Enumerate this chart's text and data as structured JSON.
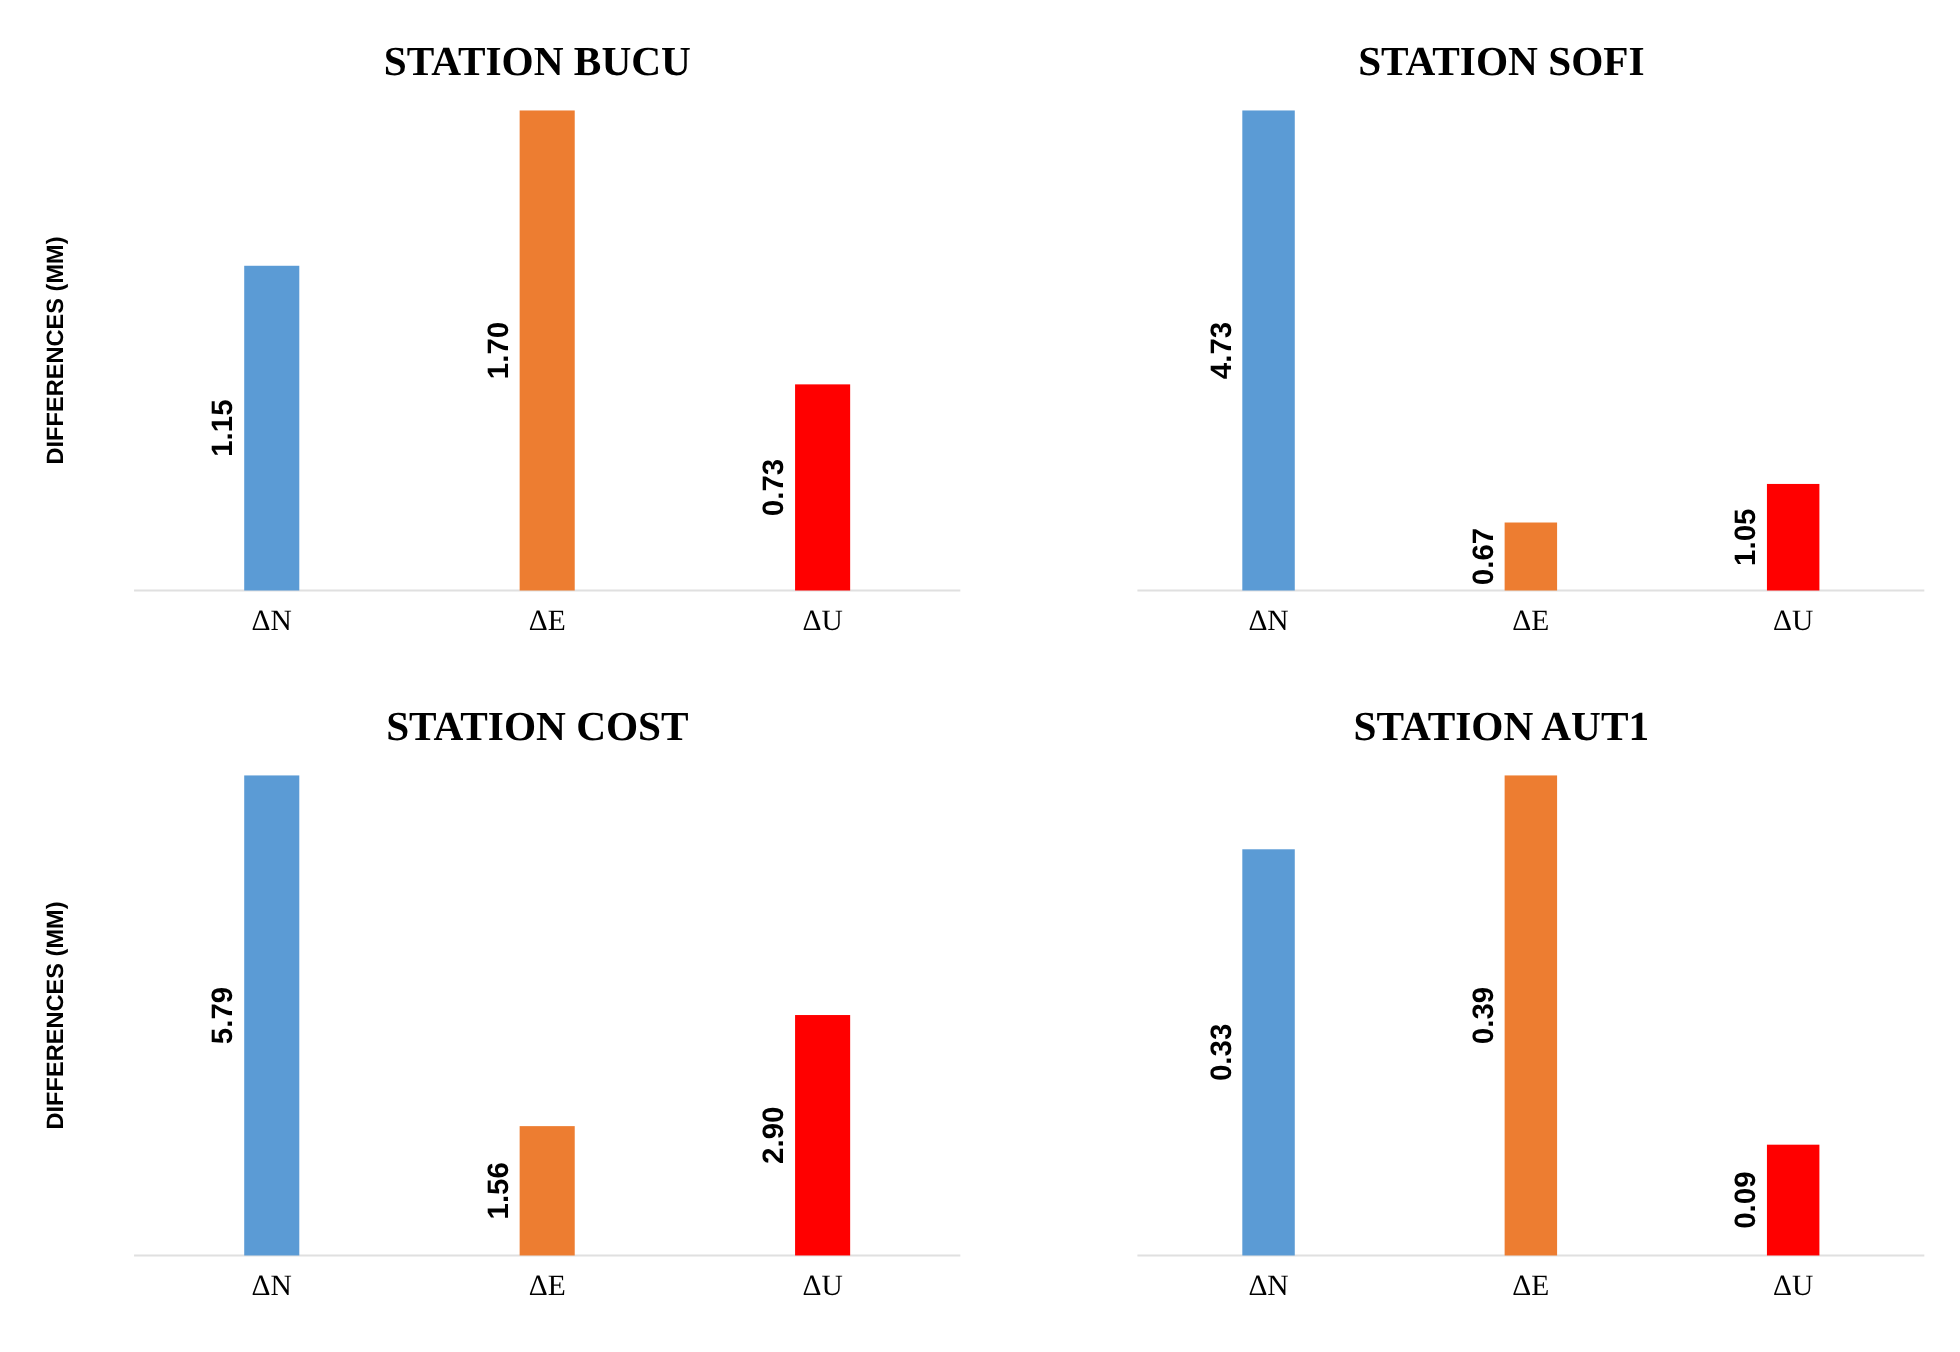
{
  "chart_data": [
    {
      "type": "bar",
      "title": "STATION BUCU",
      "ylabel": "DIFFERENCES (MM)",
      "categories": [
        "ΔN",
        "ΔE",
        "ΔU"
      ],
      "values": [
        1.15,
        1.7,
        0.73
      ],
      "colors": [
        "#5b9bd5",
        "#ed7d31",
        "#ff0000"
      ],
      "value_labels": [
        "1.15",
        "1.70",
        "0.73"
      ]
    },
    {
      "type": "bar",
      "title": "STATION SOFI",
      "categories": [
        "ΔN",
        "ΔE",
        "ΔU"
      ],
      "values": [
        4.73,
        0.67,
        1.05
      ],
      "colors": [
        "#5b9bd5",
        "#ed7d31",
        "#ff0000"
      ],
      "value_labels": [
        "4.73",
        "0.67",
        "1.05"
      ]
    },
    {
      "type": "bar",
      "title": "STATION COST",
      "ylabel": "DIFFERENCES (MM)",
      "categories": [
        "ΔN",
        "ΔE",
        "ΔU"
      ],
      "values": [
        5.79,
        1.56,
        2.9
      ],
      "colors": [
        "#5b9bd5",
        "#ed7d31",
        "#ff0000"
      ],
      "value_labels": [
        "5.79",
        "1.56",
        "2.90"
      ]
    },
    {
      "type": "bar",
      "title": "STATION AUT1",
      "categories": [
        "ΔN",
        "ΔE",
        "ΔU"
      ],
      "values": [
        0.33,
        0.39,
        0.09
      ],
      "colors": [
        "#5b9bd5",
        "#ed7d31",
        "#ff0000"
      ],
      "value_labels": [
        "0.33",
        "0.39",
        "0.09"
      ]
    }
  ]
}
